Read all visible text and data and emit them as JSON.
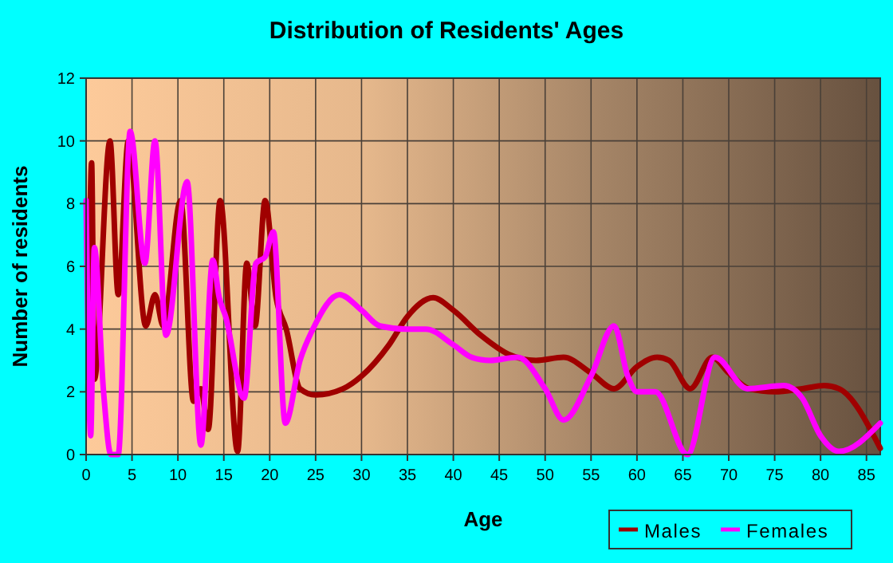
{
  "chart_data": {
    "type": "line",
    "title": "Distribution of Residents' Ages",
    "xlabel": "Age",
    "ylabel": "Number of residents",
    "xlim": [
      0,
      86.5
    ],
    "xticks": [
      0,
      5,
      10,
      15,
      20,
      25,
      30,
      35,
      40,
      45,
      50,
      55,
      60,
      65,
      70,
      75,
      80,
      85
    ],
    "ylim": [
      0,
      12
    ],
    "yticks": [
      0,
      2,
      4,
      6,
      8,
      10,
      12
    ],
    "grid": true,
    "legend": "bottom right",
    "series": [
      {
        "name": "Males",
        "color": "#a00000",
        "x": [
          0.2,
          0.6,
          0.9,
          2.6,
          3.5,
          4.6,
          6.5,
          7.5,
          8.4,
          10.3,
          11.7,
          12.5,
          13.3,
          14.6,
          16.5,
          17.5,
          18.4,
          19.5,
          20.7,
          21.8,
          23.3,
          25,
          28,
          30,
          33,
          35,
          37.8,
          40,
          43,
          46,
          49,
          52,
          55,
          57.5,
          60,
          62.2,
          63.5,
          65.8,
          68.2,
          70,
          72.2,
          75,
          78,
          80.4,
          82,
          86.5
        ],
        "values": [
          2,
          9.3,
          2.4,
          10,
          5.1,
          10,
          4.1,
          5.1,
          4.1,
          8.1,
          1.7,
          2.1,
          0.8,
          8.1,
          0.1,
          6.1,
          4.1,
          8.1,
          5,
          4,
          2.1,
          1.9,
          2.1,
          2.5,
          3.5,
          4.4,
          5,
          4.6,
          3.8,
          3.2,
          3,
          3.1,
          2.6,
          2.1,
          2.8,
          3.1,
          3,
          2.1,
          3.1,
          2.6,
          2.1,
          2,
          2.1,
          2.2,
          2.1,
          0.2
        ]
      },
      {
        "name": "Females",
        "color": "#ff00ff",
        "x": [
          0,
          0.5,
          0.9,
          1.9,
          2.7,
          3.5,
          4.8,
          6.4,
          7.5,
          8.7,
          11,
          12.5,
          13.8,
          14.5,
          15.2,
          17.2,
          18.5,
          19.5,
          20.4,
          21.7,
          23.3,
          24.7,
          27.6,
          30,
          32,
          35,
          37,
          40,
          42,
          44,
          47,
          50,
          52,
          55,
          57.5,
          59,
          60,
          62,
          65.5,
          68.5,
          72,
          76,
          78,
          80,
          82,
          86.5
        ],
        "values": [
          8.1,
          0.6,
          6.6,
          2,
          0,
          0,
          10.3,
          6.1,
          10,
          3.8,
          8.7,
          0.3,
          6.2,
          5,
          4.4,
          1.8,
          6.1,
          6.3,
          7.1,
          1,
          3,
          4,
          5.1,
          4.6,
          4.1,
          4,
          4,
          3.5,
          3.1,
          3,
          3.1,
          2.1,
          1.1,
          2.5,
          4.1,
          2.5,
          2,
          2,
          0,
          3.1,
          2.1,
          2.2,
          1.8,
          0.6,
          0.1,
          1
        ]
      }
    ]
  }
}
